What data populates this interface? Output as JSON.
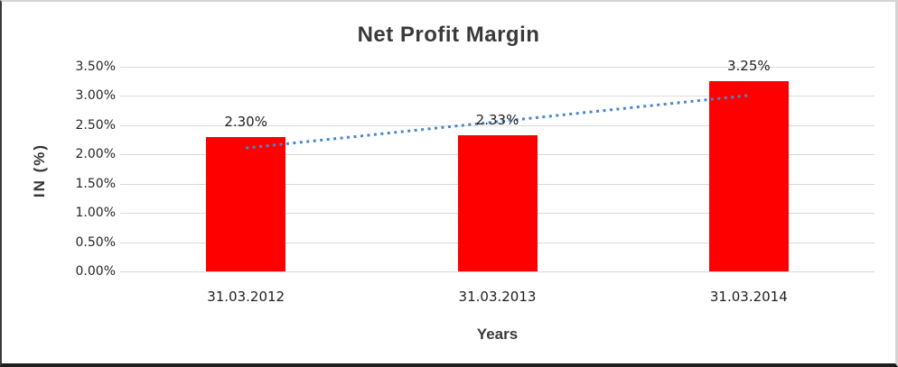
{
  "chart": {
    "title": "Net Profit Margin",
    "colors": {
      "bar": "#FF0000",
      "trendline": "#4A86C8",
      "gridline": "#D9D9D9",
      "title_text": "#3A3A3A",
      "tick_text": "#262626"
    }
  },
  "chart_data": {
    "type": "bar",
    "title": "Net Profit Margin",
    "categories": [
      "31.03.2012",
      "31.03.2013",
      "31.03.2014"
    ],
    "values": [
      2.3,
      2.33,
      3.25
    ],
    "value_labels": [
      "2.30%",
      "2.33%",
      "3.25%"
    ],
    "xlabel": "Years",
    "ylabel": "IN (%)",
    "ylim": [
      0,
      3.5
    ],
    "ytick_step": 0.5,
    "ytick_values": [
      0,
      0.5,
      1,
      1.5,
      2,
      2.5,
      3,
      3.5
    ],
    "ytick_labels": [
      "0.00%",
      "0.50%",
      "1.00%",
      "1.50%",
      "2.00%",
      "2.50%",
      "3.00%",
      "3.50%"
    ],
    "grid": true,
    "legend": false,
    "bar_color": "#FF0000",
    "trendline": {
      "type": "linear",
      "style": "dotted",
      "color": "#4A86C8",
      "from_category": "31.03.2012",
      "to_category": "31.03.2014",
      "start_value": 2.11,
      "end_value": 3.01
    }
  }
}
